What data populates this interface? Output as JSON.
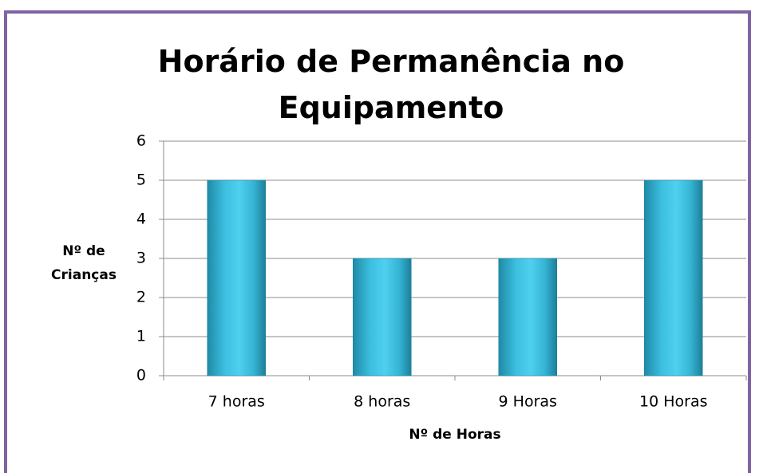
{
  "chart_data": {
    "type": "bar",
    "title": "Horário de Permanência no Equipamento",
    "x_label": "Nº de Horas",
    "y_label": "Nº de Crianças",
    "categories": [
      "7 horas",
      "8 horas",
      "9 Horas",
      "10 Horas"
    ],
    "values": [
      5,
      3,
      3,
      5
    ],
    "color": "#31b5d6",
    "ylim": [
      0,
      6
    ],
    "yticks": [
      0,
      1,
      2,
      3,
      4,
      5,
      6
    ],
    "grid": true
  }
}
